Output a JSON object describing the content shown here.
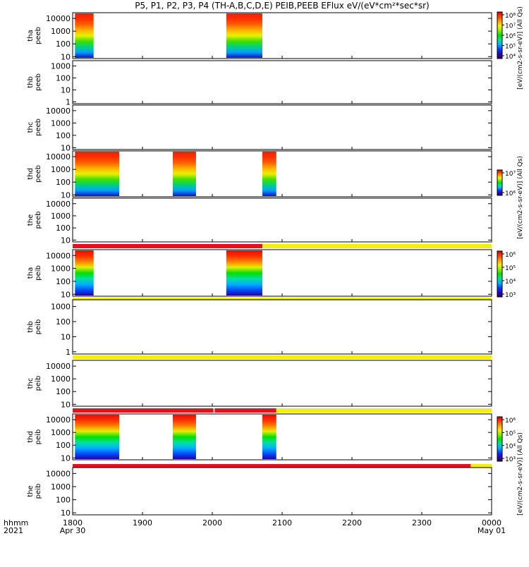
{
  "figure": {
    "title": "P5, P1, P2, P3, P4 (TH-A,B,C,D,E) PEIB,PEEB EFlux eV/(eV*cm²*sec*sr)"
  },
  "colors": {
    "flag_red": "#e8101a",
    "flag_yellow": "#f4ee10",
    "colorbar": [
      "#2a0048",
      "#3000c0",
      "#0040ff",
      "#00b0ff",
      "#00e0a0",
      "#00e000",
      "#90ec00",
      "#fff000",
      "#ffa000",
      "#ff4000",
      "#d80000"
    ]
  },
  "time_axis": {
    "row_label_1": "hhmm",
    "row_label_2": "2021",
    "ticks": [
      {
        "t": 0,
        "label": "1800",
        "sub": "Apr 30"
      },
      {
        "t": 60,
        "label": "1900",
        "sub": ""
      },
      {
        "t": 120,
        "label": "2000",
        "sub": ""
      },
      {
        "t": 180,
        "label": "2100",
        "sub": ""
      },
      {
        "t": 240,
        "label": "2200",
        "sub": ""
      },
      {
        "t": 300,
        "label": "2300",
        "sub": ""
      },
      {
        "t": 360,
        "label": "0000",
        "sub": "May 01"
      }
    ]
  },
  "colorbar_labels": {
    "top": "[eV/(cm2-s-sr-eV)] (All Qs)",
    "mid": "[eV/(cm2-s-sr-eV)] (All Qs)",
    "ion": "[eV/(cm2-s-sr-eV)] (All Qs)"
  },
  "chart_data": {
    "type": "heatmap",
    "units": "minutes after 1800 UT (Apr 30 2021); energy in eV",
    "panels": [
      {
        "probe": "tha",
        "product": "peeb",
        "yticks": [
          10,
          100,
          1000,
          10000
        ],
        "intervals": [
          [
            2,
            18
          ],
          [
            132,
            163
          ]
        ],
        "flag": null,
        "colorbar": {
          "ticks": [
            "10⁸",
            "10⁷",
            "10⁶",
            "10⁵",
            "10⁴"
          ]
        }
      },
      {
        "probe": "thb",
        "product": "peeb",
        "yticks": [
          1,
          10,
          100,
          1000
        ],
        "intervals": [],
        "flag": null,
        "colorbar": null
      },
      {
        "probe": "thc",
        "product": "peeb",
        "yticks": [
          10,
          100,
          1000,
          10000
        ],
        "intervals": [],
        "flag": null,
        "colorbar": null
      },
      {
        "probe": "thd",
        "product": "peeb",
        "yticks": [
          10,
          100,
          1000,
          10000
        ],
        "intervals": [
          [
            2,
            40
          ],
          [
            86,
            106
          ],
          [
            163,
            175
          ]
        ],
        "flag": null,
        "colorbar": {
          "ticks": [
            "10⁷",
            "10⁶"
          ]
        }
      },
      {
        "probe": "the",
        "product": "peeb",
        "yticks": [
          10,
          100,
          1000,
          10000
        ],
        "intervals": [],
        "flag": [
          {
            "from": 0,
            "to": 163,
            "state": "red"
          },
          {
            "from": 163,
            "to": 360,
            "state": "yellow"
          }
        ],
        "colorbar": null
      },
      {
        "probe": "tha",
        "product": "peib",
        "yticks": [
          10,
          100,
          1000,
          10000
        ],
        "intervals": [
          [
            2,
            18
          ],
          [
            132,
            163
          ]
        ],
        "flag": [
          {
            "from": 0,
            "to": 360,
            "state": "yellow"
          }
        ],
        "colorbar": {
          "ticks": [
            "10⁶",
            "10⁵",
            "10⁴",
            "10³"
          ]
        }
      },
      {
        "probe": "thb",
        "product": "peib",
        "yticks": [
          1,
          10,
          100,
          1000
        ],
        "intervals": [],
        "flag": [
          {
            "from": 0,
            "to": 360,
            "state": "yellow"
          }
        ],
        "colorbar": null
      },
      {
        "probe": "thc",
        "product": "peib",
        "yticks": [
          10,
          100,
          1000,
          10000
        ],
        "intervals": [],
        "flag": [
          {
            "from": 0,
            "to": 121,
            "state": "red"
          },
          {
            "from": 122,
            "to": 175,
            "state": "red"
          },
          {
            "from": 175,
            "to": 360,
            "state": "yellow"
          }
        ],
        "colorbar": null
      },
      {
        "probe": "thd",
        "product": "peib",
        "yticks": [
          10,
          100,
          1000,
          10000
        ],
        "intervals": [
          [
            2,
            40
          ],
          [
            86,
            106
          ],
          [
            163,
            175
          ]
        ],
        "flag": [
          {
            "from": 0,
            "to": 342,
            "state": "red"
          },
          {
            "from": 342,
            "to": 360,
            "state": "yellow"
          }
        ],
        "colorbar": {
          "ticks": [
            "10⁶",
            "10⁵",
            "10⁴",
            "10³"
          ]
        }
      },
      {
        "probe": "the",
        "product": "peib",
        "yticks": [
          10,
          100,
          1000,
          10000
        ],
        "intervals": [],
        "flag": null,
        "colorbar": null
      }
    ]
  }
}
